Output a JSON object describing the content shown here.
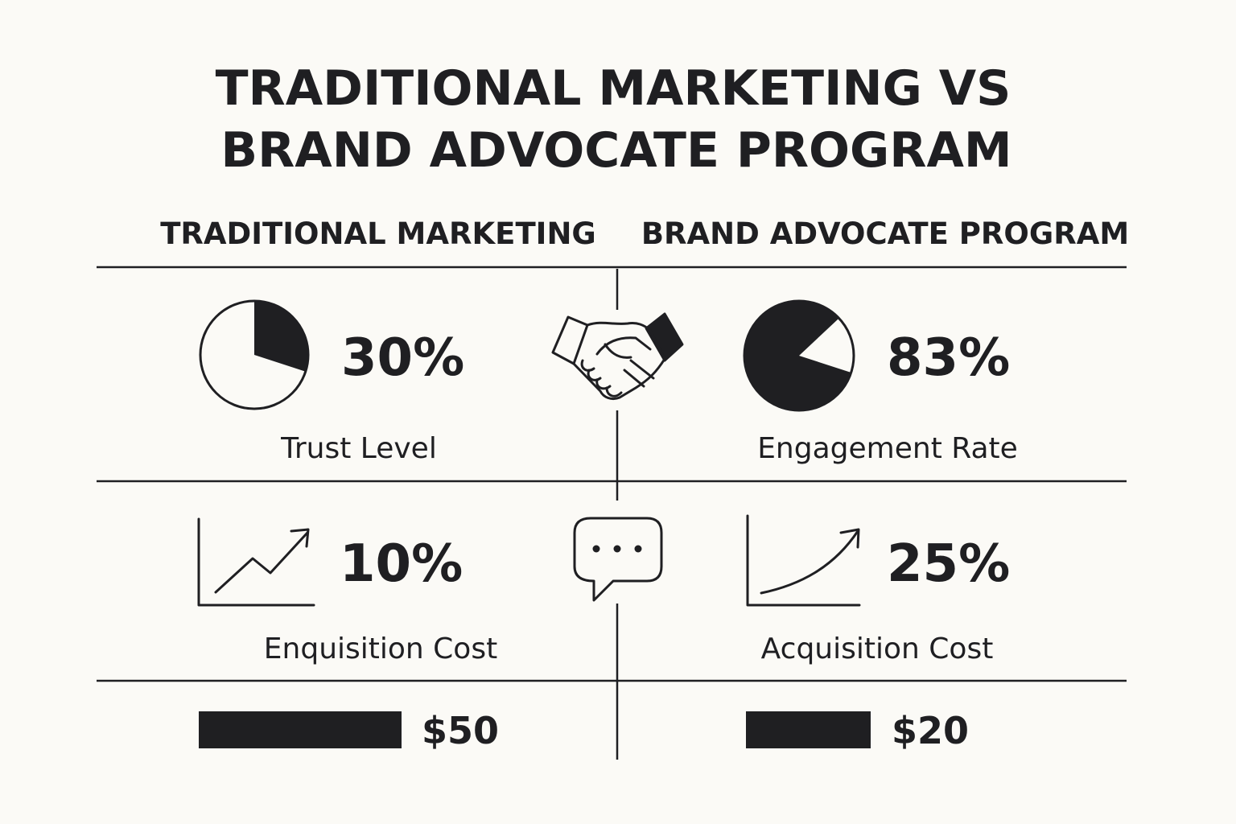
{
  "title": {
    "line1": "TRADITIONAL MARKETING VS",
    "line2": "BRAND ADVOCATE PROGRAM"
  },
  "columns": {
    "left_header": "TRADITIONAL MARKETING",
    "right_header": "BRAND ADVOCATE PROGRAM"
  },
  "rows": {
    "row1": {
      "left": {
        "value": "30%",
        "label": "Trust Level",
        "icon": "pie-chart-icon",
        "fraction": 0.3
      },
      "middle_icon": "handshake-icon",
      "right": {
        "value": "83%",
        "label": "Engagement Rate",
        "icon": "pie-chart-icon",
        "fraction": 0.83
      }
    },
    "row2": {
      "left": {
        "value": "10%",
        "label": "Enquisition Cost",
        "icon": "line-chart-icon"
      },
      "middle_icon": "speech-bubble-icon",
      "right": {
        "value": "25%",
        "label": "Acquisition Cost",
        "icon": "curve-chart-icon"
      }
    },
    "row3": {
      "left": {
        "value": "$50",
        "amount": 50
      },
      "right": {
        "value": "$20",
        "amount": 20
      }
    }
  },
  "colors": {
    "ink": "#1f1f22",
    "background": "#fbfaf6"
  }
}
